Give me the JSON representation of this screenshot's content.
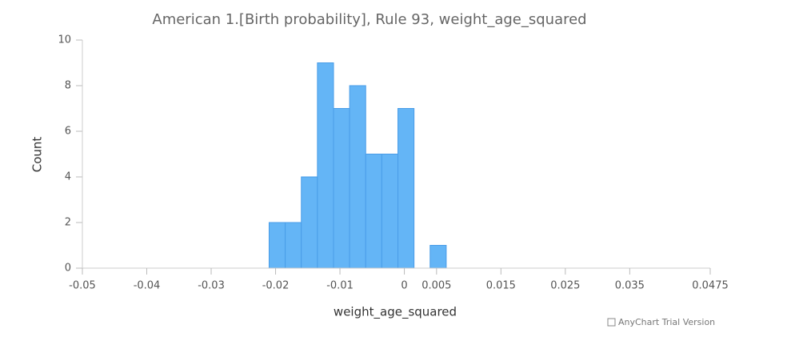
{
  "chart_data": {
    "type": "histogram",
    "title": "American 1.[Birth probability], Rule 93, weight_age_squared",
    "x_label": "weight_age_squared",
    "y_label": "Count",
    "bins": [
      -0.021,
      -0.0185,
      -0.016,
      -0.0135,
      -0.011,
      -0.0085,
      -0.006,
      -0.0035,
      -0.001,
      0.0015,
      0.004,
      0.0065
    ],
    "values": [
      2,
      2,
      4,
      9,
      7,
      8,
      5,
      5,
      7,
      0,
      1
    ],
    "color": "#64b5f6",
    "xlim": [
      -0.05,
      0.0475
    ],
    "xticks": [
      -0.05,
      -0.04,
      -0.03,
      -0.02,
      -0.01,
      0,
      0.005,
      0.015,
      0.025,
      0.035,
      0.0475
    ],
    "ylim": [
      0,
      10
    ],
    "yticks": [
      0,
      2,
      4,
      6,
      8,
      10
    ],
    "credit": "AnyChart Trial Version"
  }
}
